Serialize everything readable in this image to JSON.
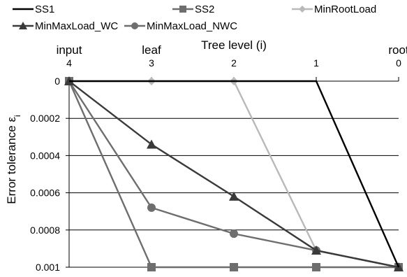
{
  "chart_data": {
    "type": "line",
    "xlabel": "Tree level (i)",
    "ylabel": "Error tolerance ε",
    "ylabel_subscript": "i",
    "x": [
      4,
      3,
      2,
      1,
      0
    ],
    "x_tick_labels": [
      "4",
      "3",
      "2",
      "1",
      "0"
    ],
    "x_top_labels": [
      "input",
      "leaf",
      "",
      "",
      "root"
    ],
    "xlim": [
      4,
      0
    ],
    "ylim": [
      0,
      0.001
    ],
    "y_inverted": true,
    "y_ticks": [
      0,
      0.0002,
      0.0004,
      0.0006,
      0.0008,
      0.001
    ],
    "y_tick_labels": [
      "0",
      "0.0002",
      "0.0004",
      "0.0006",
      "0.0008",
      "0.001"
    ],
    "grid": "horizontal",
    "legend_position": "top",
    "series": [
      {
        "name": "SS1",
        "values": [
          0,
          0,
          0,
          0,
          0.001
        ],
        "color": "#000000",
        "marker": "none"
      },
      {
        "name": "SS2",
        "values": [
          0,
          0.001,
          0.001,
          0.001,
          0.001
        ],
        "color": "#6e6e6e",
        "marker": "square"
      },
      {
        "name": "MinRootLoad",
        "values": [
          0,
          0,
          0,
          0.00091,
          0.001
        ],
        "color": "#b9b9b9",
        "marker": "diamond"
      },
      {
        "name": "MinMaxLoad_WC",
        "values": [
          0,
          0.00034,
          0.00062,
          0.00091,
          0.001
        ],
        "color": "#3a3a3a",
        "marker": "triangle"
      },
      {
        "name": "MinMaxLoad_NWC",
        "values": [
          0,
          0.00068,
          0.00082,
          0.00091,
          0.001
        ],
        "color": "#6e6e6e",
        "marker": "circle"
      }
    ]
  }
}
